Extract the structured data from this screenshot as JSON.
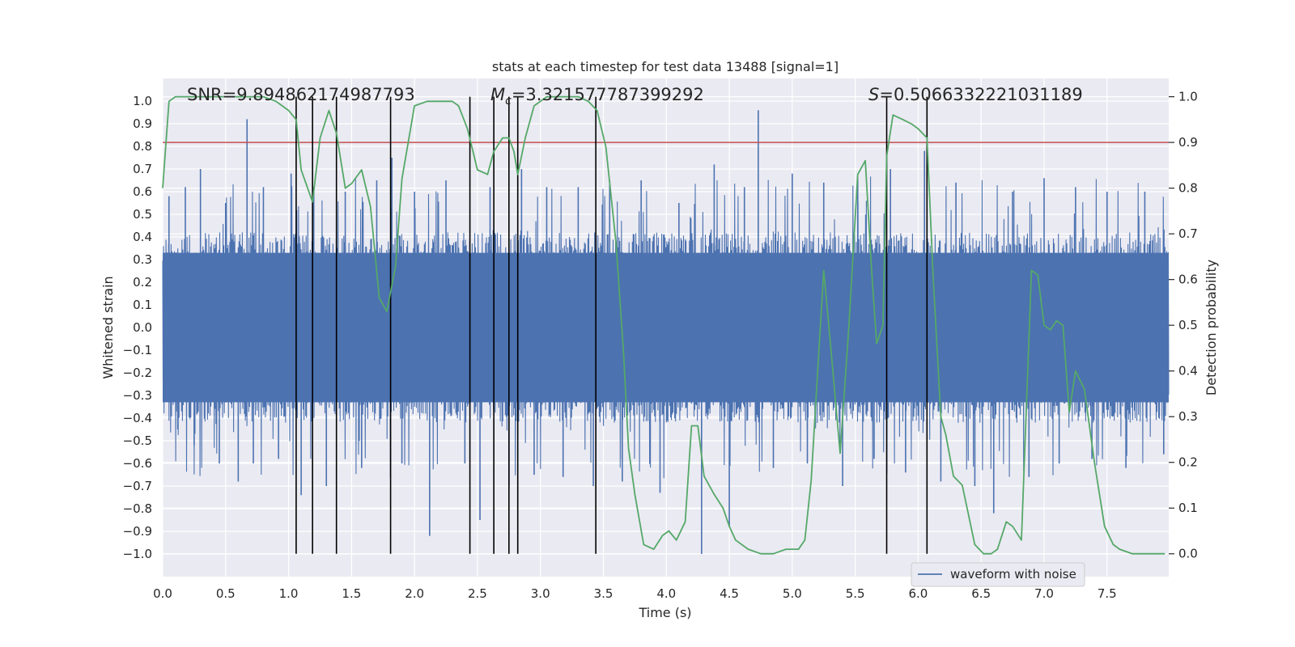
{
  "chart_data": {
    "type": "line",
    "title": "stats at each timestep for test data 13488 [signal=1]",
    "xlabel": "Time (s)",
    "ylabel": "Whitened strain",
    "ylabel_right": "Detection probability",
    "xlim": [
      0.0,
      7.99
    ],
    "ylim": [
      -1.1,
      1.1
    ],
    "ylim_right": [
      -0.05,
      1.04
    ],
    "xticks": [
      0.0,
      0.5,
      1.0,
      1.5,
      2.0,
      2.5,
      3.0,
      3.5,
      4.0,
      4.5,
      5.0,
      5.5,
      6.0,
      6.5,
      7.0,
      7.5
    ],
    "xtick_labels": [
      "0.0",
      "0.5",
      "1.0",
      "1.5",
      "2.0",
      "2.5",
      "3.0",
      "3.5",
      "4.0",
      "4.5",
      "5.0",
      "5.5",
      "6.0",
      "6.5",
      "7.0",
      "7.5"
    ],
    "yticks": [
      -1.0,
      -0.9,
      -0.8,
      -0.7,
      -0.6,
      -0.5,
      -0.4,
      -0.3,
      -0.2,
      -0.1,
      0.0,
      0.1,
      0.2,
      0.3,
      0.4,
      0.5,
      0.6,
      0.7,
      0.8,
      0.9,
      1.0
    ],
    "ytick_labels": [
      "−1.0",
      "−0.9",
      "−0.8",
      "−0.7",
      "−0.6",
      "−0.5",
      "−0.4",
      "−0.3",
      "−0.2",
      "−0.1",
      "0.0",
      "0.1",
      "0.2",
      "0.3",
      "0.4",
      "0.5",
      "0.6",
      "0.7",
      "0.8",
      "0.9",
      "1.0"
    ],
    "yticks_right": [
      0.0,
      0.1,
      0.2,
      0.3,
      0.4,
      0.5,
      0.6,
      0.7,
      0.8,
      0.9,
      1.0
    ],
    "ytick_labels_right": [
      "0.0",
      "0.1",
      "0.2",
      "0.3",
      "0.4",
      "0.5",
      "0.6",
      "0.7",
      "0.8",
      "0.9",
      "1.0"
    ],
    "annotations": {
      "snr": "SNR=9.894862174987793",
      "mc_symbol": "M",
      "mc_sub": "c",
      "mc_value": "=3.321577787399292",
      "s_symbol": "S",
      "s_value": "=0.5066332221031189"
    },
    "legend": {
      "label": "waveform with noise",
      "placement": "lower-right"
    },
    "threshold": {
      "value": 0.9,
      "axis": "right",
      "color": "#c44e52"
    },
    "event_markers": [
      1.06,
      1.19,
      1.38,
      1.81,
      2.44,
      2.63,
      2.75,
      2.82,
      3.44,
      5.75,
      6.07
    ],
    "series": [
      {
        "name": "waveform with noise",
        "axis": "left",
        "color": "#4c72b0",
        "kind": "noisy waveform envelope",
        "envelope_typical": 0.42,
        "peaks": [
          [
            0.05,
            0.58
          ],
          [
            0.12,
            -0.45
          ],
          [
            0.18,
            0.62
          ],
          [
            0.25,
            -0.52
          ],
          [
            0.3,
            0.7
          ],
          [
            0.45,
            -0.6
          ],
          [
            0.5,
            0.55
          ],
          [
            0.6,
            -0.68
          ],
          [
            0.67,
            0.92
          ],
          [
            0.72,
            -0.6
          ],
          [
            0.8,
            0.62
          ],
          [
            0.92,
            -0.58
          ],
          [
            1.02,
            0.68
          ],
          [
            1.1,
            -0.74
          ],
          [
            1.2,
            0.62
          ],
          [
            1.3,
            -0.7
          ],
          [
            1.45,
            0.6
          ],
          [
            1.58,
            -0.62
          ],
          [
            1.7,
            0.65
          ],
          [
            1.82,
            0.75
          ],
          [
            1.9,
            -0.6
          ],
          [
            2.0,
            0.6
          ],
          [
            2.12,
            -0.92
          ],
          [
            2.25,
            0.65
          ],
          [
            2.4,
            -0.6
          ],
          [
            2.52,
            -0.85
          ],
          [
            2.6,
            0.62
          ],
          [
            2.75,
            -0.7
          ],
          [
            2.85,
            0.7
          ],
          [
            2.95,
            -0.65
          ],
          [
            3.05,
            0.62
          ],
          [
            3.18,
            -0.66
          ],
          [
            3.3,
            0.62
          ],
          [
            3.42,
            -0.7
          ],
          [
            3.55,
            0.65
          ],
          [
            3.65,
            -0.68
          ],
          [
            3.8,
            0.65
          ],
          [
            3.95,
            -0.73
          ],
          [
            4.1,
            0.55
          ],
          [
            4.28,
            -1.0
          ],
          [
            4.38,
            0.72
          ],
          [
            4.5,
            -0.88
          ],
          [
            4.62,
            0.62
          ],
          [
            4.73,
            0.96
          ],
          [
            4.85,
            -0.62
          ],
          [
            5.0,
            0.68
          ],
          [
            5.12,
            -0.6
          ],
          [
            5.25,
            0.64
          ],
          [
            5.4,
            -0.7
          ],
          [
            5.52,
            0.66
          ],
          [
            5.65,
            -0.58
          ],
          [
            5.78,
            0.7
          ],
          [
            5.9,
            -0.64
          ],
          [
            6.05,
            0.78
          ],
          [
            6.18,
            -0.68
          ],
          [
            6.3,
            0.64
          ],
          [
            6.45,
            -0.7
          ],
          [
            6.6,
            -0.82
          ],
          [
            6.75,
            0.6
          ],
          [
            6.88,
            -0.66
          ],
          [
            7.0,
            0.66
          ],
          [
            7.12,
            -0.6
          ],
          [
            7.25,
            0.62
          ],
          [
            7.38,
            -0.58
          ],
          [
            7.5,
            0.6
          ],
          [
            7.65,
            -0.62
          ],
          [
            7.8,
            0.6
          ],
          [
            7.95,
            -0.56
          ]
        ]
      },
      {
        "name": "detection probability",
        "axis": "right",
        "color": "#55a868",
        "x": [
          0.0,
          0.05,
          0.1,
          0.2,
          0.3,
          0.5,
          0.7,
          0.8,
          0.9,
          1.0,
          1.06,
          1.1,
          1.19,
          1.25,
          1.32,
          1.38,
          1.45,
          1.5,
          1.58,
          1.65,
          1.72,
          1.78,
          1.85,
          1.9,
          2.0,
          2.1,
          2.2,
          2.3,
          2.35,
          2.42,
          2.5,
          2.58,
          2.63,
          2.7,
          2.75,
          2.79,
          2.82,
          2.88,
          2.95,
          3.05,
          3.15,
          3.3,
          3.38,
          3.45,
          3.52,
          3.6,
          3.66,
          3.7,
          3.75,
          3.82,
          3.9,
          3.97,
          4.02,
          4.08,
          4.15,
          4.2,
          4.25,
          4.3,
          4.38,
          4.45,
          4.5,
          4.55,
          4.65,
          4.75,
          4.85,
          4.95,
          5.05,
          5.1,
          5.15,
          5.25,
          5.3,
          5.38,
          5.45,
          5.52,
          5.58,
          5.63,
          5.67,
          5.72,
          5.75,
          5.8,
          5.88,
          5.95,
          6.0,
          6.07,
          6.12,
          6.18,
          6.22,
          6.28,
          6.35,
          6.45,
          6.52,
          6.58,
          6.63,
          6.7,
          6.75,
          6.82,
          6.9,
          6.95,
          7.0,
          7.05,
          7.1,
          7.15,
          7.2,
          7.25,
          7.32,
          7.4,
          7.48,
          7.55,
          7.6,
          7.7,
          7.85,
          7.96
        ],
        "values": [
          0.8,
          0.99,
          1.0,
          1.0,
          1.0,
          1.0,
          1.0,
          1.0,
          0.99,
          0.97,
          0.95,
          0.84,
          0.77,
          0.91,
          0.97,
          0.92,
          0.8,
          0.81,
          0.84,
          0.76,
          0.56,
          0.53,
          0.63,
          0.82,
          0.98,
          0.99,
          0.99,
          0.99,
          0.98,
          0.93,
          0.84,
          0.83,
          0.88,
          0.91,
          0.91,
          0.88,
          0.83,
          0.91,
          0.98,
          1.0,
          1.0,
          1.0,
          0.99,
          0.97,
          0.89,
          0.68,
          0.44,
          0.23,
          0.13,
          0.02,
          0.01,
          0.04,
          0.05,
          0.03,
          0.07,
          0.28,
          0.28,
          0.17,
          0.13,
          0.1,
          0.06,
          0.03,
          0.01,
          0.0,
          0.0,
          0.01,
          0.01,
          0.03,
          0.16,
          0.62,
          0.47,
          0.22,
          0.5,
          0.83,
          0.86,
          0.62,
          0.46,
          0.5,
          0.87,
          0.96,
          0.95,
          0.94,
          0.93,
          0.91,
          0.6,
          0.3,
          0.26,
          0.17,
          0.15,
          0.02,
          0.0,
          0.0,
          0.01,
          0.07,
          0.06,
          0.03,
          0.62,
          0.61,
          0.5,
          0.49,
          0.51,
          0.5,
          0.31,
          0.4,
          0.36,
          0.2,
          0.06,
          0.02,
          0.01,
          0.0,
          0.0,
          0.0
        ]
      }
    ]
  },
  "colors": {
    "plot_bg": "#eaeaf2",
    "grid": "#ffffff",
    "text": "#262626",
    "marker": "#000000"
  }
}
